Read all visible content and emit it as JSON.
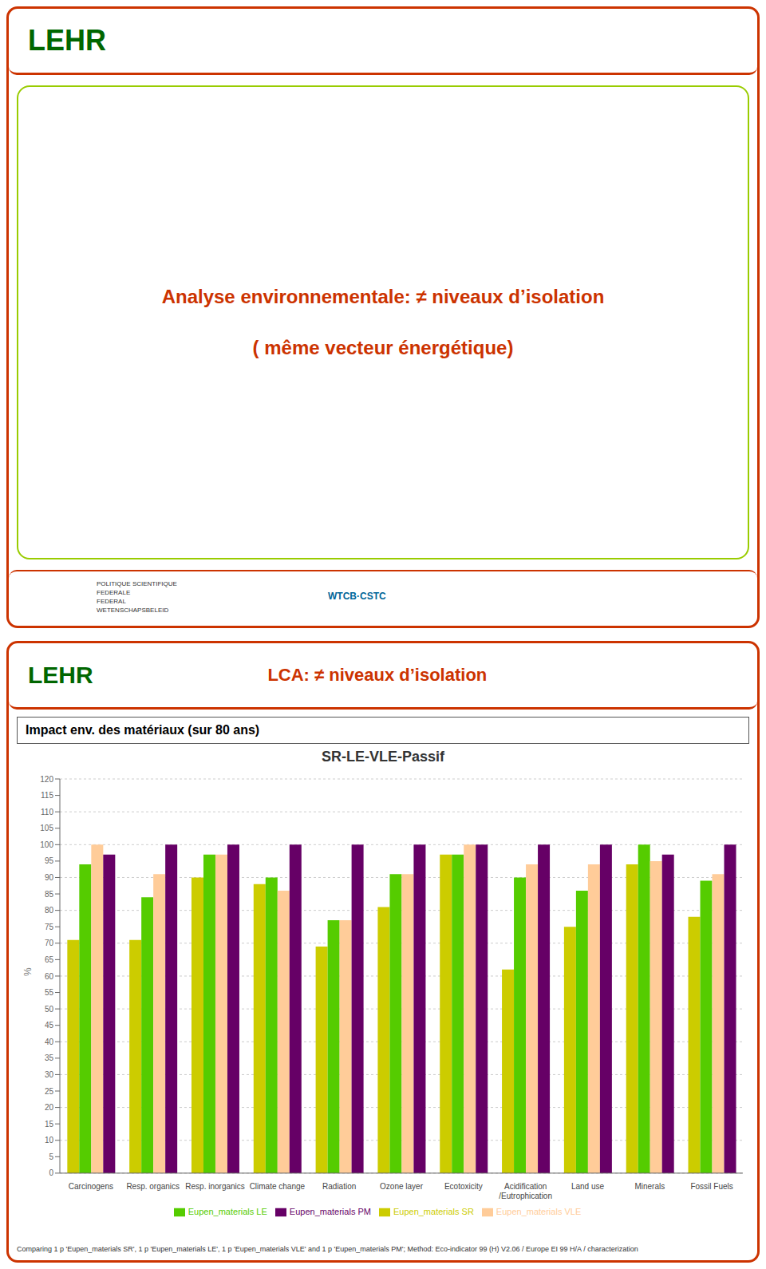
{
  "chart_data": {
    "type": "bar",
    "title": "SR-LE-VLE-Passif",
    "subtitle": "Impact env. des matériaux (sur 80 ans)",
    "ylabel": "%",
    "categories": [
      "Carcinogens",
      "Resp. organics",
      "Resp. inorganics",
      "Climate change",
      "Radiation",
      "Ozone layer",
      "Ecotoxicity",
      "Acidification\n/Eutrophication",
      "Land use",
      "Minerals",
      "Fossil Fuels"
    ],
    "series": [
      {
        "name": "Eupen_materials SR",
        "color": "#cccc00",
        "values": [
          71,
          71,
          90,
          88,
          69,
          81,
          97,
          62,
          75,
          94,
          78
        ]
      },
      {
        "name": "Eupen_materials LE",
        "color": "#55cc00",
        "values": [
          94,
          84,
          97,
          90,
          77,
          91,
          97,
          90,
          86,
          100,
          89
        ]
      },
      {
        "name": "Eupen_materials VLE",
        "color": "#ffcc99",
        "values": [
          100,
          91,
          97,
          86,
          77,
          91,
          100,
          94,
          94,
          95,
          91
        ]
      },
      {
        "name": "Eupen_materials PM",
        "color": "#660066",
        "values": [
          97,
          100,
          100,
          100,
          100,
          100,
          100,
          100,
          100,
          97,
          100
        ]
      }
    ],
    "ylim": [
      0,
      120
    ],
    "yticks": [
      0,
      5,
      10,
      15,
      20,
      25,
      30,
      35,
      40,
      45,
      50,
      55,
      60,
      65,
      70,
      75,
      80,
      85,
      90,
      95,
      100,
      105,
      110,
      115,
      120
    ],
    "grid": true,
    "legend": "bottom",
    "annotations": [
      "LEHR",
      "Analyse environnementale: ≠ niveaux d’isolation",
      "( même vecteur énergétique)",
      "POLITIQUE SCIENTIFIQUE\nFEDERALE\nFEDERAL\nWETENSCHAPSBELEID",
      "WTCB·CSTC",
      "LEHR",
      "LCA: ≠ niveaux d’isolation",
      "Comparing 1 p 'Eupen_materials SR', 1 p 'Eupen_materials LE', 1 p 'Eupen_materials VLE' and 1 p 'Eupen_materials PM'; Method: Eco-indicator 99 (H) V2.06 / Europe EI 99 H/A / characterization"
    ]
  }
}
